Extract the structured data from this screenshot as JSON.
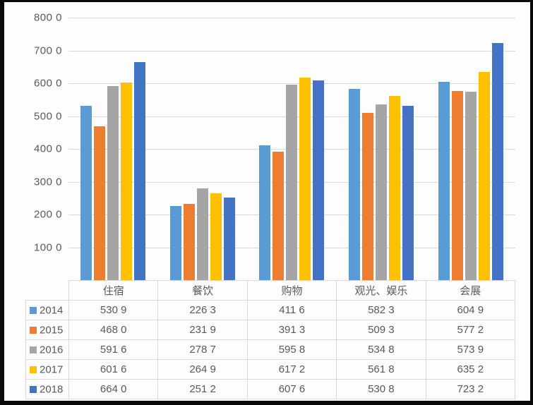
{
  "window": {
    "frame_color": "#0a0a0a",
    "background_color": "#fdfdfd"
  },
  "chart_data": {
    "type": "bar",
    "title": "",
    "xlabel": "",
    "ylabel": "",
    "grid": true,
    "legend_position": "data-table-left",
    "categories": [
      "住宿",
      "餐饮",
      "购物",
      "观光、娱乐",
      "会展"
    ],
    "series": [
      {
        "name": "2014",
        "color": "#5B9BD5",
        "values": [
          530.9,
          226.3,
          411.6,
          582.3,
          604.9
        ],
        "display": [
          "530 9",
          "226 3",
          "411 6",
          "582 3",
          "604 9"
        ]
      },
      {
        "name": "2015",
        "color": "#ED7D31",
        "values": [
          468.0,
          231.9,
          391.3,
          509.3,
          577.2
        ],
        "display": [
          "468 0",
          "231 9",
          "391 3",
          "509 3",
          "577 2"
        ]
      },
      {
        "name": "2016",
        "color": "#A5A5A5",
        "values": [
          591.6,
          278.7,
          595.8,
          534.8,
          573.9
        ],
        "display": [
          "591 6",
          "278 7",
          "595 8",
          "534 8",
          "573 9"
        ]
      },
      {
        "name": "2017",
        "color": "#FFC000",
        "values": [
          601.6,
          264.9,
          617.2,
          561.8,
          635.2
        ],
        "display": [
          "601 6",
          "264 9",
          "617 2",
          "561 8",
          "635 2"
        ]
      },
      {
        "name": "2018",
        "color": "#4472C4",
        "values": [
          664.0,
          251.2,
          607.6,
          530.8,
          723.2
        ],
        "display": [
          "664 0",
          "251 2",
          "607 6",
          "530 8",
          "723 2"
        ]
      }
    ],
    "y_axis": {
      "min": 0,
      "max": 800,
      "step": 100,
      "tick_labels": [
        "800 0",
        "700 0",
        "600 0",
        "500 0",
        "400 0",
        "300 0",
        "200 0",
        "100 0"
      ]
    },
    "colors": {
      "gridline": "#d9d9d9",
      "axis_text": "#595959",
      "table_border": "#d9d9d9",
      "table_text": "#595959"
    }
  }
}
